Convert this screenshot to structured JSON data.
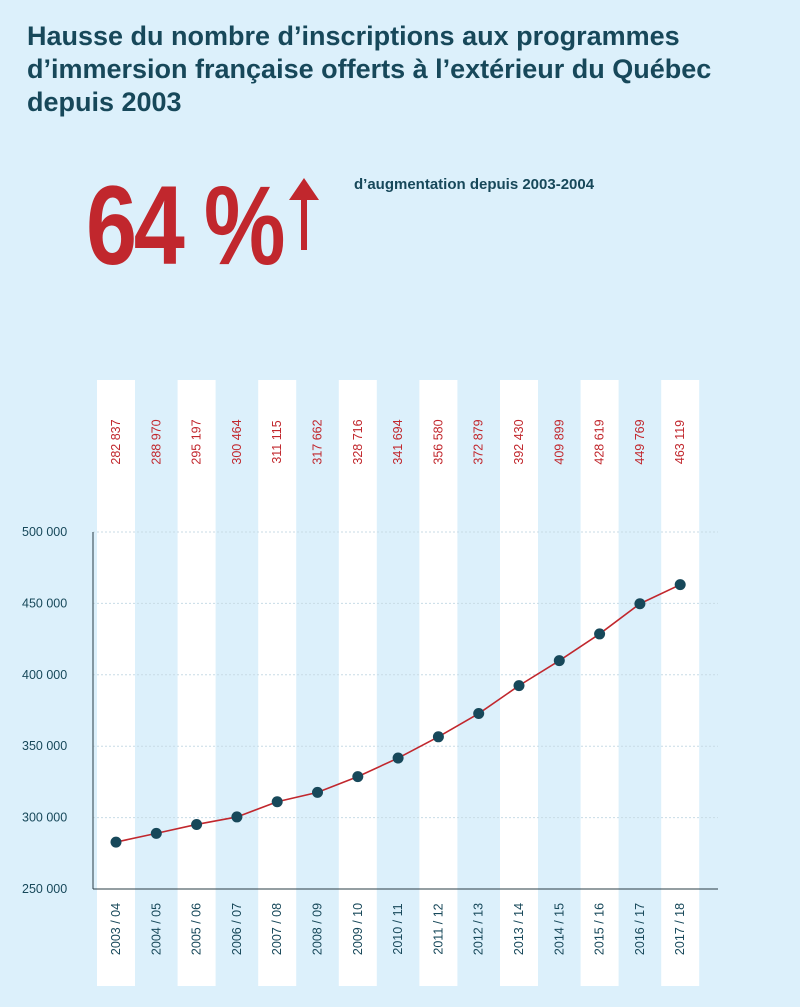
{
  "title": "Hausse du nombre d’inscriptions aux programmes d’immersion française offerts à l’extérieur du Québec depuis 2003",
  "highlight": {
    "value": "64 %",
    "caption": "d’augmentation depuis 2003-2004"
  },
  "colors": {
    "background": "#dcf0fb",
    "accent": "#c1272d",
    "text": "#17485a",
    "band": "#ffffff"
  },
  "chart_data": {
    "type": "line",
    "categories": [
      "2003 / 04",
      "2004 / 05",
      "2005 / 06",
      "2006 / 07",
      "2007 / 08",
      "2008 / 09",
      "2009 / 10",
      "2010 / 11",
      "2011 / 12",
      "2012 / 13",
      "2013 / 14",
      "2014 / 15",
      "2015 / 16",
      "2016 / 17",
      "2017 / 18"
    ],
    "values": [
      282837,
      288970,
      295197,
      300464,
      311115,
      317662,
      328716,
      341694,
      356580,
      372879,
      392430,
      409899,
      428619,
      449769,
      463119
    ],
    "value_labels": [
      "282 837",
      "288 970",
      "295 197",
      "300 464",
      "311 115",
      "317 662",
      "328 716",
      "341 694",
      "356 580",
      "372 879",
      "392 430",
      "409 899",
      "428 619",
      "449 769",
      "463 119"
    ],
    "yticks": [
      250000,
      300000,
      350000,
      400000,
      450000,
      500000
    ],
    "ytick_labels": [
      "250 000",
      "300 000",
      "350 000",
      "400 000",
      "450 000",
      "500 000"
    ],
    "ylim": [
      250000,
      500000
    ],
    "grid": true
  }
}
